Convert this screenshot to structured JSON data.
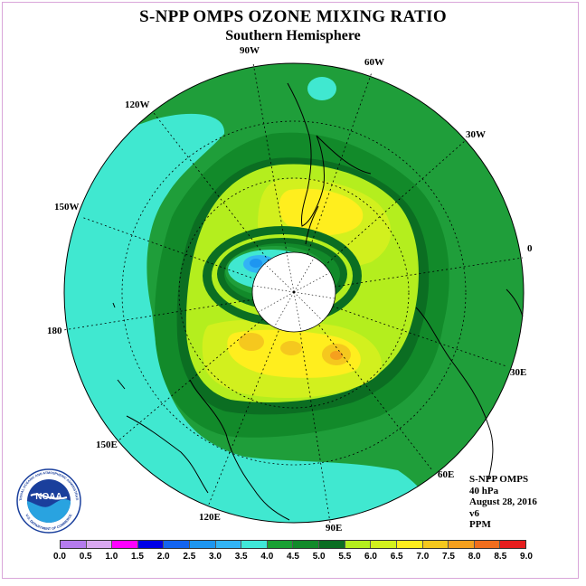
{
  "title": "S-NPP OMPS OZONE MIXING RATIO",
  "subtitle": "Southern Hemisphere",
  "longitude_labels": [
    "90W",
    "60W",
    "30W",
    "0",
    "30E",
    "60E",
    "90E",
    "120E",
    "150E",
    "180",
    "150W",
    "120W"
  ],
  "info": {
    "line1": "S-NPP OMPS",
    "line2": "40 hPa",
    "line3": "August 28, 2016",
    "line4": "v6",
    "line5": "PPM"
  },
  "colorbar": {
    "levels": [
      "0.0",
      "0.5",
      "1.0",
      "1.5",
      "2.0",
      "2.5",
      "3.0",
      "3.5",
      "4.0",
      "4.5",
      "5.0",
      "5.5",
      "6.0",
      "6.5",
      "7.0",
      "7.5",
      "8.0",
      "8.5",
      "9.0"
    ],
    "colors": [
      "#b57bee",
      "#d9a8f0",
      "#ff00ff",
      "#0000e6",
      "#1464f0",
      "#1e96f0",
      "#32b4f5",
      "#40e8d8",
      "#19a033",
      "#128a2a",
      "#0b6e22",
      "#b4ee1e",
      "#d2f01e",
      "#ffee1e",
      "#f5c81e",
      "#f5a01e",
      "#f06e1e",
      "#e61e1e",
      "#f0001e",
      "#8c5032"
    ]
  },
  "logo": {
    "text": "NOAA",
    "ring_text": "NATIONAL OCEANIC AND ATMOSPHERIC ADMINISTRATION",
    "ring_text_bottom": "U.S. DEPARTMENT OF COMMERCE"
  }
}
